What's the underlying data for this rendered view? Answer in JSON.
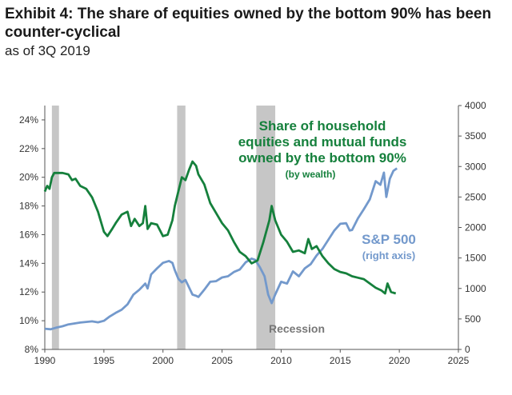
{
  "header": {
    "title": "Exhibit 4: The share of equities owned by the bottom 90% has been counter-cyclical",
    "subtitle": "as of 3Q 2019"
  },
  "colors": {
    "share_line": "#15803c",
    "sp500_line": "#7399cc",
    "recession_band": "#c6c6c6",
    "axis": "#555555"
  },
  "chart_data": {
    "type": "line",
    "x_range": [
      1990,
      2025
    ],
    "x_ticks": [
      "1990",
      "1995",
      "2000",
      "2005",
      "2010",
      "2015",
      "2020",
      "2025"
    ],
    "left_axis": {
      "range": [
        8,
        25
      ],
      "ticks": [
        "8%",
        "10%",
        "12%",
        "14%",
        "16%",
        "18%",
        "20%",
        "22%",
        "24%"
      ]
    },
    "right_axis": {
      "range": [
        0,
        4000
      ],
      "ticks": [
        "0",
        "500",
        "1000",
        "1500",
        "2000",
        "2500",
        "3000",
        "3500",
        "4000"
      ]
    },
    "recessions": [
      [
        1990.6,
        1991.2
      ],
      [
        2001.2,
        2001.9
      ],
      [
        2007.9,
        2009.5
      ]
    ],
    "recession_label": "Recession",
    "series": [
      {
        "name": "Share of household equities and mutual funds owned by the bottom 90% (by wealth)",
        "label_lines": [
          "Share of household",
          "equities and mutual funds",
          "owned by the bottom 90%"
        ],
        "label_note": "(by wealth)",
        "axis": "left",
        "points": [
          [
            1990.0,
            19.0
          ],
          [
            1990.2,
            19.4
          ],
          [
            1990.4,
            19.2
          ],
          [
            1990.6,
            20.0
          ],
          [
            1990.8,
            20.3
          ],
          [
            1991.0,
            20.3
          ],
          [
            1991.5,
            20.3
          ],
          [
            1992.0,
            20.2
          ],
          [
            1992.3,
            19.8
          ],
          [
            1992.6,
            19.9
          ],
          [
            1993.0,
            19.4
          ],
          [
            1993.5,
            19.2
          ],
          [
            1994.0,
            18.6
          ],
          [
            1994.5,
            17.6
          ],
          [
            1995.0,
            16.2
          ],
          [
            1995.3,
            15.9
          ],
          [
            1995.7,
            16.4
          ],
          [
            1996.0,
            16.8
          ],
          [
            1996.5,
            17.4
          ],
          [
            1997.0,
            17.6
          ],
          [
            1997.3,
            16.6
          ],
          [
            1997.6,
            17.1
          ],
          [
            1998.0,
            16.6
          ],
          [
            1998.3,
            16.8
          ],
          [
            1998.5,
            18.0
          ],
          [
            1998.7,
            16.4
          ],
          [
            1999.0,
            16.8
          ],
          [
            1999.5,
            16.7
          ],
          [
            2000.0,
            15.9
          ],
          [
            2000.4,
            16.0
          ],
          [
            2000.8,
            17.0
          ],
          [
            2001.0,
            18.0
          ],
          [
            2001.3,
            19.0
          ],
          [
            2001.6,
            20.0
          ],
          [
            2001.9,
            19.8
          ],
          [
            2002.2,
            20.5
          ],
          [
            2002.5,
            21.1
          ],
          [
            2002.8,
            20.8
          ],
          [
            2003.0,
            20.2
          ],
          [
            2003.5,
            19.5
          ],
          [
            2004.0,
            18.2
          ],
          [
            2004.5,
            17.5
          ],
          [
            2005.0,
            16.8
          ],
          [
            2005.5,
            16.3
          ],
          [
            2006.0,
            15.5
          ],
          [
            2006.5,
            14.8
          ],
          [
            2007.0,
            14.5
          ],
          [
            2007.5,
            14.0
          ],
          [
            2008.0,
            14.2
          ],
          [
            2008.5,
            15.5
          ],
          [
            2009.0,
            17.0
          ],
          [
            2009.2,
            18.0
          ],
          [
            2009.5,
            17.0
          ],
          [
            2010.0,
            16.0
          ],
          [
            2010.5,
            15.5
          ],
          [
            2011.0,
            14.8
          ],
          [
            2011.5,
            14.9
          ],
          [
            2012.0,
            14.7
          ],
          [
            2012.3,
            15.7
          ],
          [
            2012.6,
            15.0
          ],
          [
            2013.0,
            15.2
          ],
          [
            2013.5,
            14.5
          ],
          [
            2014.0,
            14.0
          ],
          [
            2014.5,
            13.6
          ],
          [
            2015.0,
            13.4
          ],
          [
            2015.5,
            13.3
          ],
          [
            2016.0,
            13.1
          ],
          [
            2016.5,
            13.0
          ],
          [
            2017.0,
            12.9
          ],
          [
            2017.5,
            12.6
          ],
          [
            2018.0,
            12.3
          ],
          [
            2018.5,
            12.1
          ],
          [
            2018.8,
            11.9
          ],
          [
            2019.0,
            12.6
          ],
          [
            2019.3,
            12.0
          ],
          [
            2019.7,
            11.9
          ]
        ]
      },
      {
        "name": "S&P 500",
        "label_lines": [
          "S&P 500"
        ],
        "label_note": "(right axis)",
        "axis": "right",
        "points": [
          [
            1990.0,
            340
          ],
          [
            1990.5,
            330
          ],
          [
            1991.0,
            360
          ],
          [
            1991.5,
            380
          ],
          [
            1992.0,
            410
          ],
          [
            1993.0,
            440
          ],
          [
            1994.0,
            460
          ],
          [
            1994.5,
            445
          ],
          [
            1995.0,
            470
          ],
          [
            1995.5,
            540
          ],
          [
            1996.0,
            600
          ],
          [
            1996.5,
            650
          ],
          [
            1997.0,
            740
          ],
          [
            1997.5,
            900
          ],
          [
            1998.0,
            980
          ],
          [
            1998.5,
            1080
          ],
          [
            1998.7,
            1000
          ],
          [
            1999.0,
            1230
          ],
          [
            1999.5,
            1330
          ],
          [
            2000.0,
            1420
          ],
          [
            2000.5,
            1450
          ],
          [
            2000.8,
            1420
          ],
          [
            2001.0,
            1300
          ],
          [
            2001.3,
            1160
          ],
          [
            2001.6,
            1100
          ],
          [
            2001.9,
            1140
          ],
          [
            2002.2,
            1020
          ],
          [
            2002.5,
            900
          ],
          [
            2002.8,
            880
          ],
          [
            2003.0,
            860
          ],
          [
            2003.5,
            980
          ],
          [
            2004.0,
            1110
          ],
          [
            2004.5,
            1120
          ],
          [
            2005.0,
            1180
          ],
          [
            2005.5,
            1200
          ],
          [
            2006.0,
            1270
          ],
          [
            2006.5,
            1310
          ],
          [
            2007.0,
            1430
          ],
          [
            2007.5,
            1490
          ],
          [
            2007.8,
            1470
          ],
          [
            2008.2,
            1350
          ],
          [
            2008.6,
            1200
          ],
          [
            2008.9,
            900
          ],
          [
            2009.2,
            760
          ],
          [
            2009.5,
            900
          ],
          [
            2010.0,
            1110
          ],
          [
            2010.5,
            1080
          ],
          [
            2011.0,
            1280
          ],
          [
            2011.5,
            1200
          ],
          [
            2012.0,
            1330
          ],
          [
            2012.5,
            1400
          ],
          [
            2013.0,
            1540
          ],
          [
            2013.5,
            1650
          ],
          [
            2014.0,
            1800
          ],
          [
            2014.5,
            1950
          ],
          [
            2015.0,
            2060
          ],
          [
            2015.5,
            2070
          ],
          [
            2015.8,
            1950
          ],
          [
            2016.0,
            1960
          ],
          [
            2016.5,
            2150
          ],
          [
            2017.0,
            2300
          ],
          [
            2017.5,
            2460
          ],
          [
            2018.0,
            2760
          ],
          [
            2018.4,
            2700
          ],
          [
            2018.7,
            2900
          ],
          [
            2018.9,
            2500
          ],
          [
            2019.2,
            2800
          ],
          [
            2019.5,
            2930
          ],
          [
            2019.8,
            2970
          ]
        ]
      }
    ]
  }
}
